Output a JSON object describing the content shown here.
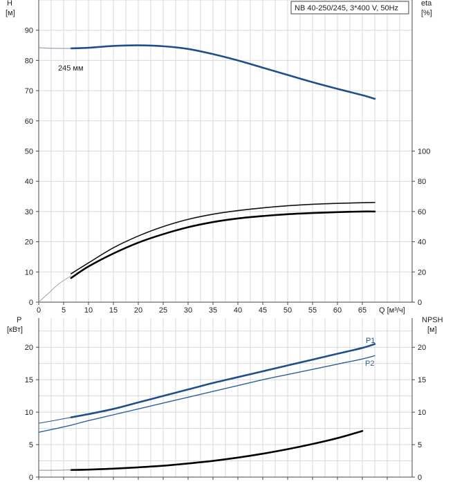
{
  "chart_data": [
    {
      "type": "line",
      "panel": "top",
      "title_box": "NB 40-250/245, 3*400 V, 50Hz",
      "xlabel": "Q [м³/ч]",
      "xlim": [
        0,
        75
      ],
      "xticks": [
        0,
        5,
        10,
        15,
        20,
        25,
        30,
        35,
        40,
        45,
        50,
        55,
        60,
        65
      ],
      "left_axis": {
        "label_line1": "H",
        "label_line2": "[м]",
        "lim": [
          0,
          100
        ],
        "ticks": [
          0,
          10,
          20,
          30,
          40,
          50,
          60,
          70,
          80,
          90
        ]
      },
      "right_axis": {
        "label_line1": "eta",
        "label_line2": "[%]",
        "lim": [
          0,
          200
        ],
        "ticks": [
          0,
          20,
          40,
          60,
          80,
          100
        ]
      },
      "grid": true,
      "series": [
        {
          "name": "245 мм",
          "axis": "left",
          "color": "#1f4e8c",
          "width": 2.6,
          "x": [
            6.5,
            10,
            15,
            20,
            25,
            30,
            35,
            40,
            45,
            50,
            55,
            60,
            65,
            67.5
          ],
          "y": [
            84,
            84.2,
            84.8,
            85,
            84.7,
            83.8,
            82.1,
            80,
            77.6,
            75.2,
            72.8,
            70.6,
            68.5,
            67.3
          ]
        },
        {
          "axis": "left",
          "color": "#8090a8",
          "width": 1,
          "x": [
            0,
            3,
            6.5
          ],
          "y": [
            84.2,
            84,
            84
          ]
        },
        {
          "axis": "right",
          "color": "#111111",
          "width": 1.6,
          "x": [
            6.5,
            10,
            15,
            20,
            25,
            30,
            35,
            40,
            45,
            50,
            55,
            60,
            65,
            67.5
          ],
          "y": [
            18.8,
            26,
            36,
            43.8,
            50,
            54.8,
            58.2,
            60.6,
            62.4,
            63.8,
            64.8,
            65.4,
            65.8,
            66
          ]
        },
        {
          "axis": "right",
          "color": "#000000",
          "width": 2.6,
          "x": [
            6.5,
            10,
            15,
            20,
            25,
            30,
            35,
            40,
            45,
            50,
            55,
            60,
            65,
            67.5
          ],
          "y": [
            16,
            23.6,
            32.2,
            39.4,
            45,
            49.6,
            53,
            55.4,
            57,
            58.2,
            59,
            59.6,
            60,
            60
          ]
        },
        {
          "axis": "right",
          "color": "#a0a0a0",
          "width": 1,
          "x": [
            0,
            2,
            4,
            6.5
          ],
          "y": [
            0,
            6,
            12,
            17.5
          ]
        }
      ]
    },
    {
      "type": "line",
      "panel": "bottom",
      "xlim": [
        0,
        75
      ],
      "left_axis": {
        "label_line1": "P",
        "label_line2": "[кВт]",
        "lim": [
          0,
          24.5
        ],
        "ticks": [
          0,
          5,
          10,
          15,
          20
        ]
      },
      "right_axis": {
        "label_line1": "NPSH",
        "label_line2": "[м]",
        "lim": [
          0,
          24.5
        ],
        "ticks": [
          0,
          5,
          10,
          15,
          20
        ]
      },
      "grid": true,
      "series": [
        {
          "name": "P1",
          "axis": "left",
          "color": "#1f4e8c",
          "width": 2.6,
          "x": [
            6.5,
            10,
            15,
            20,
            25,
            30,
            35,
            40,
            45,
            50,
            55,
            60,
            65,
            67.5
          ],
          "y": [
            9.2,
            9.7,
            10.5,
            11.5,
            12.5,
            13.5,
            14.5,
            15.4,
            16.3,
            17.2,
            18.1,
            19,
            19.9,
            20.5
          ]
        },
        {
          "axis": "left",
          "color": "#1f4e8c",
          "width": 1,
          "x": [
            0,
            3,
            6.5
          ],
          "y": [
            8.3,
            8.7,
            9.2
          ]
        },
        {
          "name": "P2",
          "axis": "left",
          "color": "#2c5f9c",
          "width": 1.4,
          "x": [
            0,
            3,
            6.5,
            10,
            15,
            20,
            25,
            30,
            35,
            40,
            45,
            50,
            55,
            60,
            65,
            67.5
          ],
          "y": [
            6.9,
            7.4,
            8,
            8.7,
            9.6,
            10.5,
            11.4,
            12.3,
            13.2,
            14.1,
            15,
            15.8,
            16.6,
            17.4,
            18.2,
            18.7
          ]
        },
        {
          "axis": "right",
          "color": "#000000",
          "width": 2.6,
          "x": [
            6.5,
            10,
            15,
            20,
            25,
            30,
            35,
            40,
            45,
            50,
            55,
            60,
            65
          ],
          "y": [
            1.1,
            1.15,
            1.3,
            1.5,
            1.75,
            2.1,
            2.5,
            3,
            3.6,
            4.3,
            5.1,
            6,
            7.1
          ]
        },
        {
          "axis": "right",
          "color": "#888888",
          "width": 1,
          "x": [
            0,
            3,
            6.5
          ],
          "y": [
            1.05,
            1.05,
            1.1
          ]
        }
      ]
    }
  ]
}
